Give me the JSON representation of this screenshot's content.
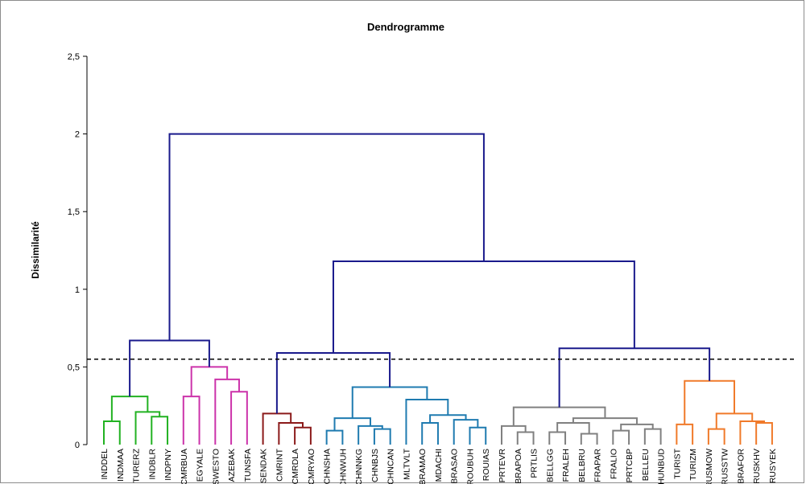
{
  "chart_data": {
    "type": "dendrogram",
    "title": "Dendrogramme",
    "ylabel": "Dissimilarité",
    "xlabel": "",
    "ylim": [
      0,
      2.5
    ],
    "yticks": [
      "0",
      "0,5",
      "1",
      "1,5",
      "2",
      "2,5"
    ],
    "cut_threshold": 0.55,
    "leaves": [
      "INDDEL",
      "INDMAA",
      "TURERZ",
      "INDBLR",
      "INDPNY",
      "CMRBUA",
      "EGYALE",
      "SWESTO",
      "AZEBAK",
      "TUNSFA",
      "SENDAK",
      "CMRINT",
      "CMRDLA",
      "CMRYAO",
      "CHNSHA",
      "CHNWUH",
      "CHNNKG",
      "CHNBJS",
      "CHNCAN",
      "MLTVLT",
      "BRAMAO",
      "MDACHI",
      "BRASAO",
      "ROUBUH",
      "ROUIAS",
      "PRTEVR",
      "BRAPOA",
      "PRTLIS",
      "BELLGG",
      "FRALEH",
      "BELBRU",
      "FRAPAR",
      "FRALIO",
      "PRTCBP",
      "BELLEU",
      "HUNBUD",
      "TURIST",
      "TURIZM",
      "RUSMOW",
      "RUSSTW",
      "BRAFOR",
      "RUSKHV",
      "RUSYEK"
    ],
    "merges": [
      {
        "children": [
          "L0",
          "L1"
        ],
        "height": 0.15,
        "group": "green"
      },
      {
        "children": [
          "L3",
          "L4"
        ],
        "height": 0.18,
        "group": "green"
      },
      {
        "children": [
          "L2",
          "M1"
        ],
        "height": 0.21,
        "group": "green"
      },
      {
        "children": [
          "M0",
          "M2"
        ],
        "height": 0.31,
        "group": "green"
      },
      {
        "children": [
          "L8",
          "L9"
        ],
        "height": 0.34,
        "group": "magenta"
      },
      {
        "children": [
          "L7",
          "M4"
        ],
        "height": 0.42,
        "group": "magenta"
      },
      {
        "children": [
          "L5",
          "L6"
        ],
        "height": 0.31,
        "group": "magenta"
      },
      {
        "children": [
          "M6",
          "M5"
        ],
        "height": 0.5,
        "group": "magenta"
      },
      {
        "children": [
          "M3",
          "M7"
        ],
        "height": 0.67,
        "group": "navy"
      },
      {
        "children": [
          "L12",
          "L13"
        ],
        "height": 0.11,
        "group": "maroon"
      },
      {
        "children": [
          "L11",
          "M9"
        ],
        "height": 0.14,
        "group": "maroon"
      },
      {
        "children": [
          "L10",
          "M10"
        ],
        "height": 0.2,
        "group": "maroon"
      },
      {
        "children": [
          "L14",
          "L15"
        ],
        "height": 0.09,
        "group": "blue"
      },
      {
        "children": [
          "L17",
          "L18"
        ],
        "height": 0.1,
        "group": "blue"
      },
      {
        "children": [
          "L16",
          "M13"
        ],
        "height": 0.12,
        "group": "blue"
      },
      {
        "children": [
          "M12",
          "M14"
        ],
        "height": 0.17,
        "group": "blue"
      },
      {
        "children": [
          "L20",
          "L21"
        ],
        "height": 0.14,
        "group": "blue"
      },
      {
        "children": [
          "L23",
          "L24"
        ],
        "height": 0.11,
        "group": "blue"
      },
      {
        "children": [
          "L22",
          "M17"
        ],
        "height": 0.16,
        "group": "blue"
      },
      {
        "children": [
          "M16",
          "M18"
        ],
        "height": 0.19,
        "group": "blue"
      },
      {
        "children": [
          "L19",
          "M19"
        ],
        "height": 0.29,
        "group": "blue"
      },
      {
        "children": [
          "M15",
          "M20"
        ],
        "height": 0.37,
        "group": "blue"
      },
      {
        "children": [
          "M11",
          "M21"
        ],
        "height": 0.59,
        "group": "navy"
      },
      {
        "children": [
          "L26",
          "L27"
        ],
        "height": 0.08,
        "group": "gray"
      },
      {
        "children": [
          "L25",
          "M23"
        ],
        "height": 0.12,
        "group": "gray"
      },
      {
        "children": [
          "L28",
          "L29"
        ],
        "height": 0.08,
        "group": "gray"
      },
      {
        "children": [
          "L30",
          "L31"
        ],
        "height": 0.07,
        "group": "gray"
      },
      {
        "children": [
          "M25",
          "M26"
        ],
        "height": 0.14,
        "group": "gray"
      },
      {
        "children": [
          "L32",
          "L33"
        ],
        "height": 0.09,
        "group": "gray"
      },
      {
        "children": [
          "L34",
          "L35"
        ],
        "height": 0.1,
        "group": "gray"
      },
      {
        "children": [
          "M28",
          "M29"
        ],
        "height": 0.13,
        "group": "gray"
      },
      {
        "children": [
          "M27",
          "M30"
        ],
        "height": 0.17,
        "group": "gray"
      },
      {
        "children": [
          "M24",
          "M31"
        ],
        "height": 0.24,
        "group": "gray"
      },
      {
        "children": [
          "L36",
          "L37"
        ],
        "height": 0.13,
        "group": "orange"
      },
      {
        "children": [
          "L38",
          "L39"
        ],
        "height": 0.1,
        "group": "orange"
      },
      {
        "children": [
          "L41",
          "L42"
        ],
        "height": 0.14,
        "group": "orange"
      },
      {
        "children": [
          "L40",
          "M35"
        ],
        "height": 0.15,
        "group": "orange"
      },
      {
        "children": [
          "M34",
          "M36"
        ],
        "height": 0.2,
        "group": "orange"
      },
      {
        "children": [
          "M33",
          "M37"
        ],
        "height": 0.41,
        "group": "orange"
      },
      {
        "children": [
          "M32",
          "M38"
        ],
        "height": 0.62,
        "group": "navy"
      },
      {
        "children": [
          "M22",
          "M39"
        ],
        "height": 1.18,
        "group": "navy"
      },
      {
        "children": [
          "M8",
          "M40"
        ],
        "height": 2.0,
        "group": "navy"
      }
    ],
    "group_colors": {
      "green": "#22b222",
      "magenta": "#cc33aa",
      "maroon": "#8b1a1a",
      "blue": "#1f7bb0",
      "gray": "#808080",
      "orange": "#f07a2a",
      "navy": "#1a1a8c"
    },
    "grid": false,
    "legend": "none"
  }
}
